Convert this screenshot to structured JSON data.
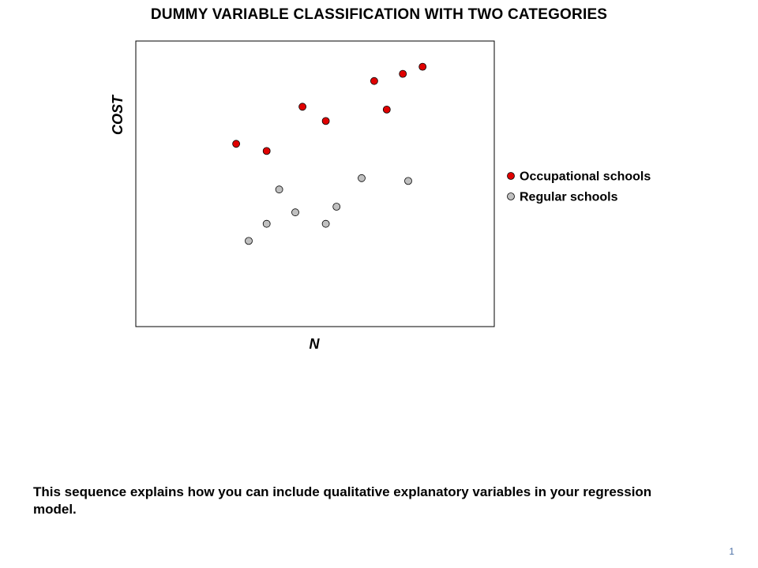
{
  "slide": {
    "title": "DUMMY VARIABLE CLASSIFICATION WITH TWO CATEGORIES",
    "caption": "This sequence explains how you can include qualitative explanatory variables in your regression model.",
    "page_number": "1"
  },
  "chart_data": {
    "type": "scatter",
    "title": "",
    "xlabel": "N",
    "ylabel": "COST",
    "xlim": [
      0,
      100
    ],
    "ylim": [
      0,
      100
    ],
    "grid": false,
    "ticks": false,
    "legend_position": "right",
    "series": [
      {
        "name": "Occupational schools",
        "color": "#e00000",
        "points": [
          {
            "x": 28,
            "y": 64
          },
          {
            "x": 36.5,
            "y": 61.5
          },
          {
            "x": 46.5,
            "y": 77
          },
          {
            "x": 53,
            "y": 72
          },
          {
            "x": 66.5,
            "y": 86
          },
          {
            "x": 70,
            "y": 76
          },
          {
            "x": 74.5,
            "y": 88.5
          },
          {
            "x": 80,
            "y": 91
          }
        ]
      },
      {
        "name": "Regular schools",
        "color": "#c0c0c0",
        "points": [
          {
            "x": 31.5,
            "y": 30
          },
          {
            "x": 36.5,
            "y": 36
          },
          {
            "x": 40,
            "y": 48
          },
          {
            "x": 44.5,
            "y": 40
          },
          {
            "x": 53,
            "y": 36
          },
          {
            "x": 56,
            "y": 42
          },
          {
            "x": 63,
            "y": 52
          },
          {
            "x": 76,
            "y": 51
          }
        ]
      }
    ]
  }
}
